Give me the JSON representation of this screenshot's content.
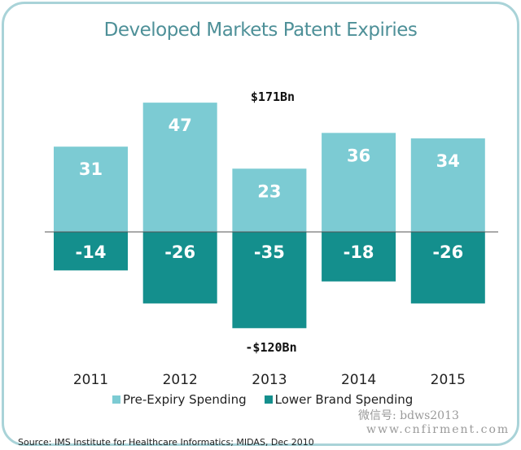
{
  "chart_data": {
    "type": "bar",
    "title": "Developed Markets Patent Expiries",
    "categories": [
      "2011",
      "2012",
      "2013",
      "2014",
      "2015"
    ],
    "series": [
      {
        "name": "Pre-Expiry Spending",
        "values": [
          31,
          47,
          23,
          36,
          34
        ],
        "color": "#7ccbd3"
      },
      {
        "name": "Lower Brand Spending",
        "values": [
          -14,
          -26,
          -35,
          -18,
          -26
        ],
        "color": "#148f8d"
      }
    ],
    "data_labels": {
      "positive": [
        "31",
        "47",
        "23",
        "36",
        "34"
      ],
      "negative": [
        "-14",
        "-26",
        "-35",
        "-18",
        "-26"
      ]
    },
    "annotations": {
      "total_positive": "$171Bn",
      "total_negative": "-$120Bn"
    },
    "xlabel": "",
    "ylabel": "",
    "ylim": [
      -35,
      47
    ],
    "grid": false,
    "legend": "bottom"
  },
  "source": "Source: IMS Institute for Healthcare Informatics; MIDAS, Dec 2010",
  "watermark": {
    "line1": "微信号: bdws2013",
    "line2": "www.cnfirment.com"
  }
}
